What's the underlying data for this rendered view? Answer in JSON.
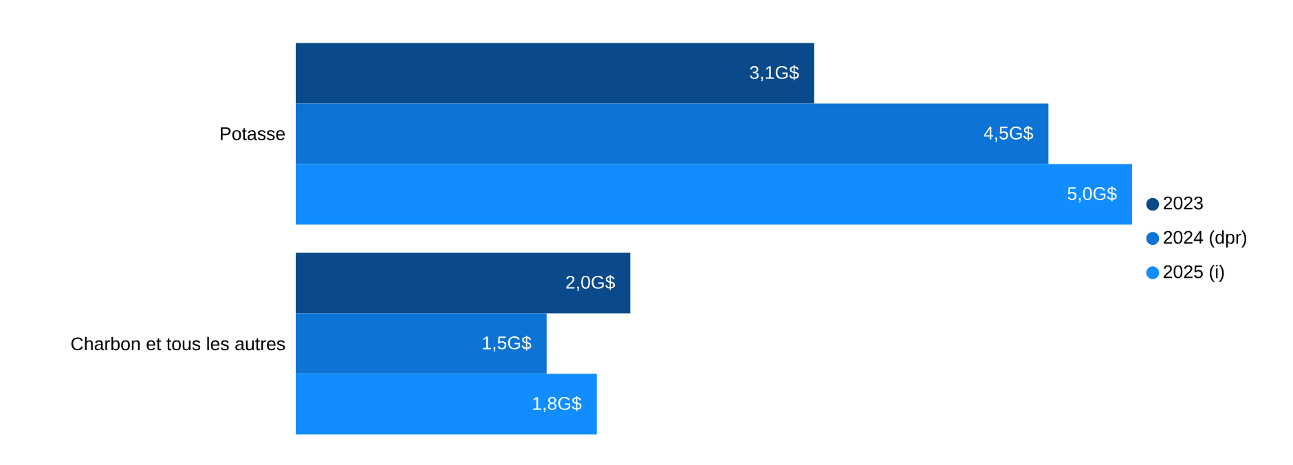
{
  "chart_data": {
    "type": "bar",
    "orientation": "horizontal",
    "categories": [
      "Potasse",
      "Charbon et tous les autres"
    ],
    "series": [
      {
        "name": "2023",
        "color": "#0b4a8a",
        "values": [
          3.1,
          2.0
        ],
        "value_labels": [
          "3,1G$",
          "2,0G$"
        ]
      },
      {
        "name": "2024 (dpr)",
        "color": "#0d74d5",
        "values": [
          4.5,
          1.5
        ],
        "value_labels": [
          "4,5G$",
          "1,5G$"
        ]
      },
      {
        "name": "2025 (i)",
        "color": "#118dff",
        "values": [
          5.0,
          1.8
        ],
        "value_labels": [
          "5,0G$",
          "1,8G$"
        ]
      }
    ],
    "legend": "right",
    "marker": "circle"
  }
}
